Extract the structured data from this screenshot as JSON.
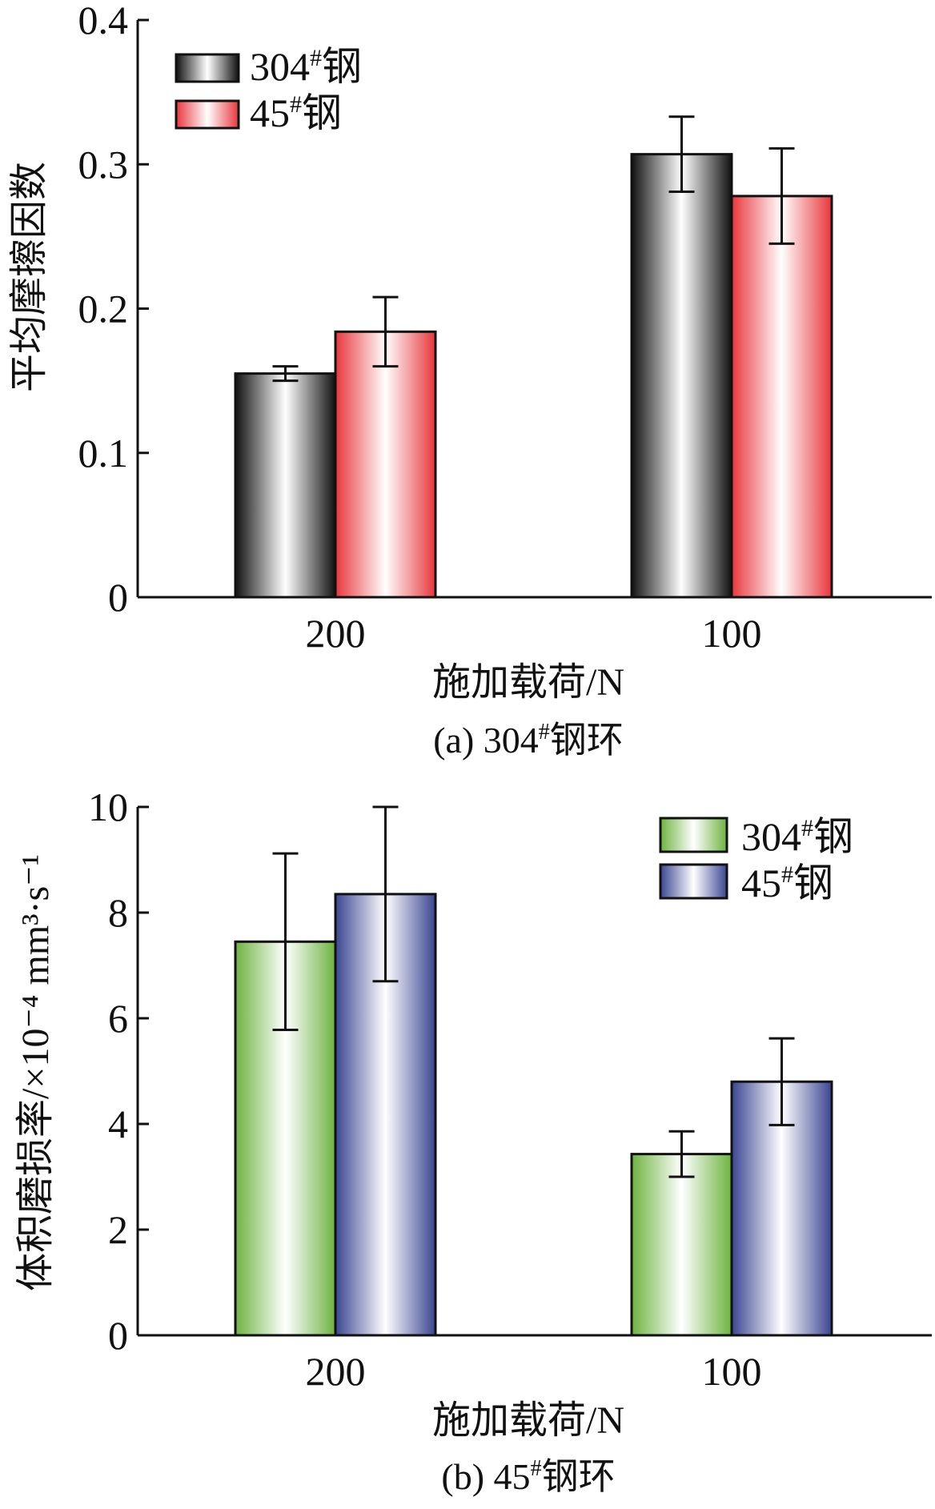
{
  "chart_data": [
    {
      "type": "bar",
      "caption": "(a) 304#钢环",
      "xlabel": "施加载荷/N",
      "ylabel": "平均摩擦因数",
      "categories": [
        "200",
        "100"
      ],
      "ylim": [
        0,
        0.4
      ],
      "yticks": [
        "0",
        "0.1",
        "0.2",
        "0.3",
        "0.4"
      ],
      "ytick_values": [
        0,
        0.1,
        0.2,
        0.3,
        0.4
      ],
      "grid": false,
      "legend_position": "top-left",
      "series": [
        {
          "name": "304#钢",
          "values": [
            0.155,
            0.307
          ],
          "errors": [
            0.005,
            0.026
          ],
          "colors": {
            "edge": "#111111",
            "center": "#ffffff"
          }
        },
        {
          "name": "45#钢",
          "values": [
            0.184,
            0.278
          ],
          "errors": [
            0.024,
            0.033
          ],
          "colors": {
            "edge": "#e8363c",
            "center": "#ffffff"
          }
        }
      ]
    },
    {
      "type": "bar",
      "caption": "(b) 45#钢环",
      "xlabel": "施加载荷/N",
      "ylabel": "体积磨损率/×10⁻⁴ mm³·s⁻¹",
      "categories": [
        "200",
        "100"
      ],
      "ylim": [
        0,
        10
      ],
      "yticks": [
        "0",
        "2",
        "4",
        "6",
        "8",
        "10"
      ],
      "ytick_values": [
        0,
        2,
        4,
        6,
        8,
        10
      ],
      "grid": false,
      "legend_position": "top-right",
      "series": [
        {
          "name": "304#钢",
          "values": [
            7.45,
            3.43
          ],
          "errors": [
            1.67,
            0.43
          ],
          "colors": {
            "edge": "#6db33f",
            "center": "#ffffff"
          }
        },
        {
          "name": "45#钢",
          "values": [
            8.35,
            4.8
          ],
          "errors": [
            1.65,
            0.82
          ],
          "colors": {
            "edge": "#3b4692",
            "center": "#ffffff"
          }
        }
      ]
    }
  ]
}
